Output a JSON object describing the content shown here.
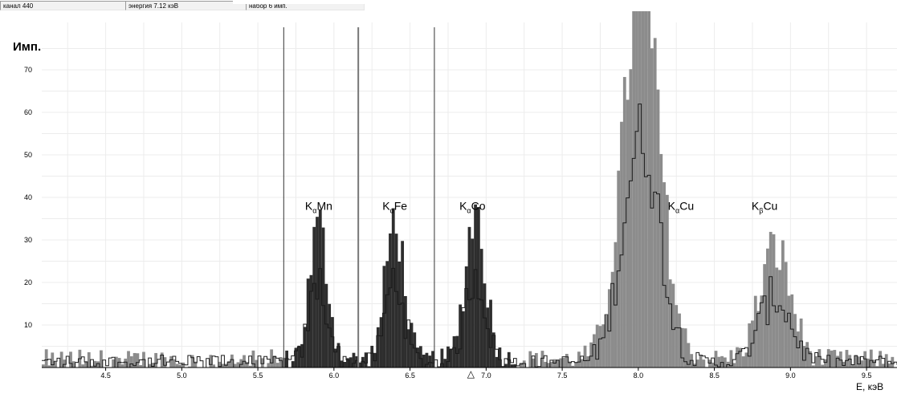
{
  "status_bar": {
    "channel": "канал 440",
    "energy": "энергия  7.12 кэВ",
    "collection": "набор   6 имп."
  },
  "chart_data": {
    "type": "histogram",
    "ylabel": "Имп.",
    "xlabel": "E, кэВ",
    "x_ticks": [
      "4.5",
      "5.0",
      "5.5",
      "6.0",
      "6.5",
      "7.0",
      "7.5",
      "8.0",
      "8.5",
      "9.0",
      "9.5"
    ],
    "y_ticks": [
      "10",
      "20",
      "30",
      "40",
      "50",
      "60",
      "70"
    ],
    "xlim": [
      4.08,
      9.7
    ],
    "ylim": [
      0,
      80
    ],
    "grid": true,
    "cursor_marker": "△",
    "cursor_energy": 6.9,
    "vertical_markers": [
      5.67,
      6.16,
      6.66
    ],
    "annotations": [
      {
        "base": "K",
        "sub": "α",
        "element": "Mn",
        "x": 5.9,
        "y": 38
      },
      {
        "base": "K",
        "sub": "α",
        "element": "Fe",
        "x": 6.4,
        "y": 38
      },
      {
        "base": "K",
        "sub": "α",
        "element": "Co",
        "x": 6.91,
        "y": 38
      },
      {
        "base": "K",
        "sub": "α",
        "element": "Cu",
        "x": 8.28,
        "y": 38
      },
      {
        "base": "K",
        "sub": "β",
        "element": "Cu",
        "x": 8.83,
        "y": 38
      }
    ],
    "peaks": [
      {
        "name": "KαMn",
        "center": 5.9,
        "height": 31,
        "sigma": 0.06
      },
      {
        "name": "KαFe",
        "center": 6.4,
        "height": 33,
        "sigma": 0.06
      },
      {
        "name": "KαCo",
        "center": 6.93,
        "height": 35,
        "sigma": 0.065
      },
      {
        "name": "KαCu",
        "center": 8.02,
        "height": 88,
        "sigma": 0.12
      },
      {
        "name": "KβCu",
        "center": 8.9,
        "height": 26,
        "sigma": 0.1
      }
    ],
    "colors": {
      "dark_fill": "#2e2e2e",
      "light_fill": "#8c8c8c",
      "line": "#1a1a1a",
      "grid": "#ececec"
    }
  }
}
